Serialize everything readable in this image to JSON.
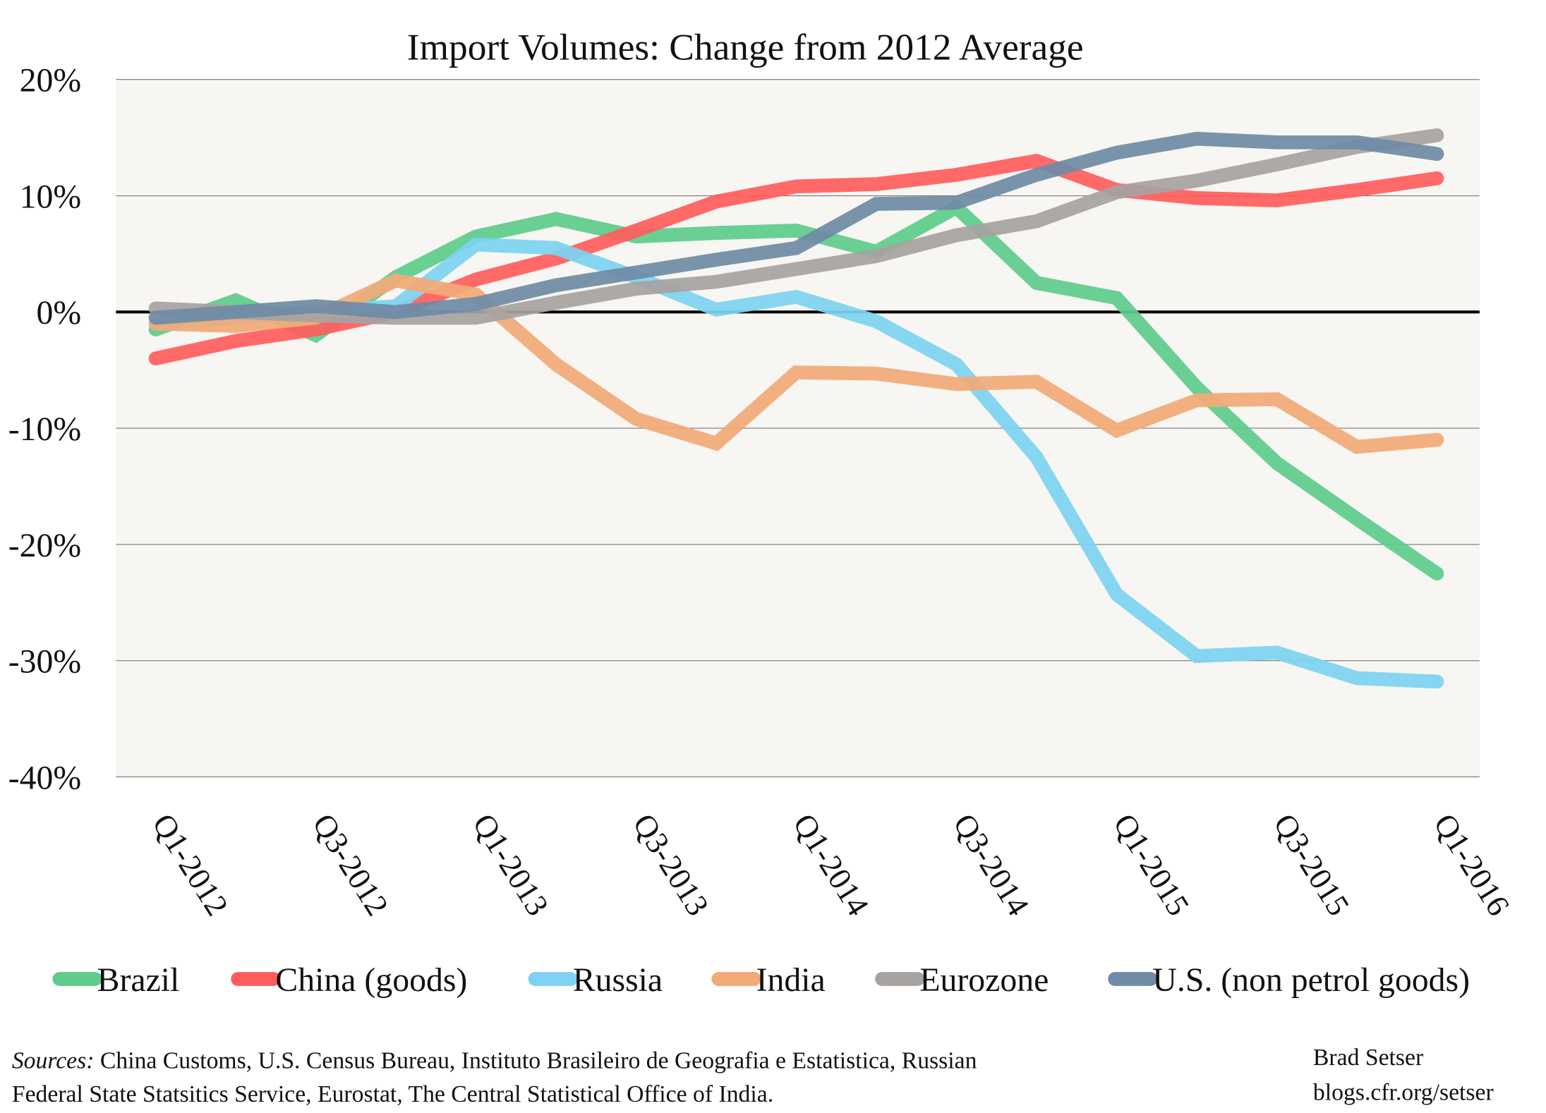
{
  "chart_data": {
    "type": "line",
    "title": "Import Volumes: Change from 2012 Average",
    "xlabel": "",
    "ylabel": "",
    "ylim": [
      -40,
      20
    ],
    "yticks": [
      20,
      10,
      0,
      -10,
      -20,
      -30,
      -40
    ],
    "ytick_labels": [
      "20%",
      "10%",
      "0%",
      "-10%",
      "-20%",
      "-30%",
      "-40%"
    ],
    "x": [
      "Q1-2012",
      "Q2-2012",
      "Q3-2012",
      "Q4-2012",
      "Q1-2013",
      "Q2-2013",
      "Q3-2013",
      "Q4-2013",
      "Q1-2014",
      "Q2-2014",
      "Q3-2014",
      "Q4-2014",
      "Q1-2015",
      "Q2-2015",
      "Q3-2015",
      "Q4-2015",
      "Q1-2016"
    ],
    "xtick_labels": [
      "Q1-2012",
      "Q3-2012",
      "Q1-2013",
      "Q3-2013",
      "Q1-2014",
      "Q3-2014",
      "Q1-2015",
      "Q3-2015",
      "Q1-2016"
    ],
    "grid": true,
    "legend_placement": "bottom",
    "series": [
      {
        "name": "Brazil",
        "color": "#5fcb8c",
        "values": [
          -1.5,
          1.0,
          -2.0,
          3.0,
          6.5,
          8.0,
          6.5,
          6.8,
          7.0,
          5.2,
          9.0,
          2.5,
          1.2,
          -6.5,
          -13.0,
          -17.8,
          -22.5
        ]
      },
      {
        "name": "China (goods)",
        "color": "#ff5e5e",
        "values": [
          -4.0,
          -2.5,
          -1.5,
          0.0,
          2.8,
          4.6,
          7.0,
          9.5,
          10.8,
          11.0,
          11.8,
          13.0,
          10.5,
          9.8,
          9.6,
          10.5,
          11.5
        ]
      },
      {
        "name": "Russia",
        "color": "#7dd3f1",
        "values": [
          -1.0,
          -0.5,
          0.0,
          0.5,
          5.8,
          5.5,
          3.0,
          0.2,
          1.3,
          -0.8,
          -4.5,
          -12.5,
          -24.3,
          -29.6,
          -29.3,
          -31.5,
          -31.8
        ]
      },
      {
        "name": "India",
        "color": "#f1aa78",
        "values": [
          -1.0,
          -1.2,
          -0.5,
          2.7,
          1.5,
          -4.5,
          -9.2,
          -11.3,
          -5.2,
          -5.3,
          -6.2,
          -6.0,
          -10.2,
          -7.6,
          -7.5,
          -11.6,
          -11.0
        ]
      },
      {
        "name": "Eurozone",
        "color": "#a7a3a1",
        "values": [
          0.3,
          0.0,
          -0.3,
          -0.5,
          -0.5,
          0.8,
          2.0,
          2.6,
          3.7,
          4.8,
          6.6,
          7.8,
          10.3,
          11.3,
          12.7,
          14.2,
          15.2
        ]
      },
      {
        "name": "U.S. (non petrol goods)",
        "color": "#6f8ba6",
        "values": [
          -0.5,
          0.0,
          0.5,
          0.0,
          0.7,
          2.3,
          3.4,
          4.5,
          5.5,
          9.3,
          9.4,
          11.8,
          13.7,
          14.9,
          14.6,
          14.6,
          13.6
        ]
      }
    ]
  },
  "footer": {
    "sources_label": "Sources:",
    "sources_line1": " China Customs, U.S. Census Bureau, Instituto Brasileiro de Geografia e Estatistica, Russian",
    "sources_line2": "Federal State Statsitics Service, Eurostat, The Central Statistical Office of India.",
    "author": "Brad Setser",
    "blog": "blogs.cfr.org/setser"
  },
  "colors": {
    "plot_background": "#f7f6f2",
    "zero_line": "#000000",
    "grid": "#777777"
  }
}
